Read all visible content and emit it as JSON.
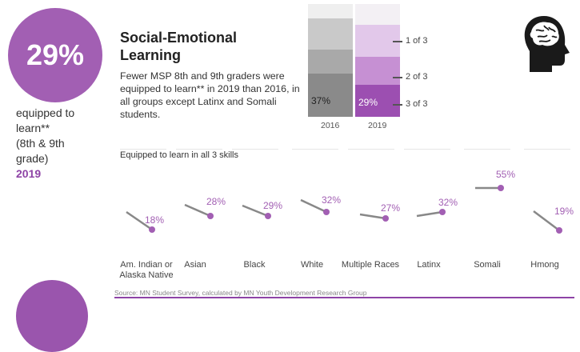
{
  "headline": {
    "big_stat": "29%",
    "desc_lines": [
      "equipped to",
      "learn**",
      "(8th & 9th",
      "grade)"
    ],
    "year": "2019",
    "circle_color": "#a25fb3"
  },
  "title": "Social-Emotional Learning",
  "subtitle": "Fewer MSP 8th and 9th graders were equipped to learn** in 2019 than 2016, in all groups except Latinx and Somali students.",
  "icon": "head-brain-icon",
  "source": "Source: MN Student Survey, calculated by MN Youth Development Research Group",
  "chart_data": [
    {
      "type": "bar",
      "stacked": true,
      "categories": [
        "2016",
        "2019"
      ],
      "legend": [
        "1 of 3",
        "2 of 3",
        "3 of 3"
      ],
      "data_labels": [
        "37%",
        "29%"
      ],
      "series_colors": {
        "2016": [
          "#f0f0f0",
          "#c8c8c8",
          "#a8a8a8",
          "#888888"
        ],
        "2019": [
          "#f4eef6",
          "#e0c5e8",
          "#c78fd4",
          "#9b4fb0"
        ]
      },
      "values_3_of_3": [
        37,
        29
      ]
    },
    {
      "type": "line",
      "title": "Equipped to learn in all 3 skills",
      "categories": [
        "Am. Indian or Alaska Native",
        "Asian",
        "Black",
        "White",
        "Multiple Races",
        "Latinx",
        "Somali",
        "Hmong"
      ],
      "series": [
        {
          "values_2019": [
            18,
            28,
            29,
            32,
            27,
            32,
            55,
            19
          ]
        }
      ],
      "labels": [
        "18%",
        "28%",
        "29%",
        "32%",
        "27%",
        "32%",
        "55%",
        "19%"
      ],
      "accent": "#a25fb3",
      "line_color": "#888888"
    }
  ]
}
